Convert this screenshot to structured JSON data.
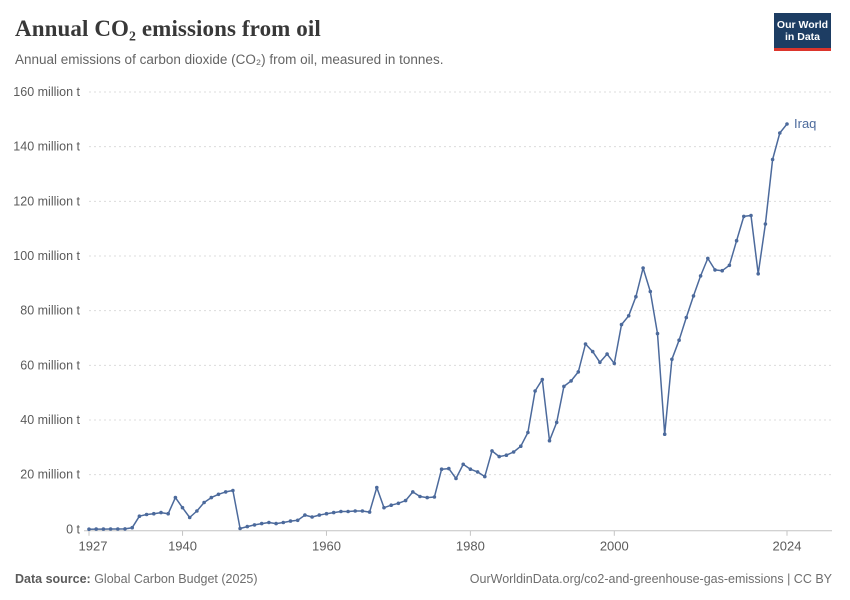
{
  "header": {
    "title": "Annual CO₂ emissions from oil",
    "subtitle": "Annual emissions of carbon dioxide (CO₂) from oil, measured in tonnes.",
    "logo": {
      "line1": "Our World",
      "line2": "in Data",
      "bg_color": "#1d3d63",
      "accent_color": "#dc352c"
    }
  },
  "footer": {
    "data_source_label": "Data source:",
    "data_source_value": " Global Carbon Budget (2025)",
    "right_text": "OurWorldinData.org/co2-and-greenhouse-gas-emissions | CC BY"
  },
  "chart_data": {
    "type": "line",
    "title": "Annual CO₂ emissions from oil",
    "subtitle": "Annual emissions of carbon dioxide (CO₂) from oil, measured in tonnes.",
    "xlabel": "",
    "ylabel": "",
    "unit": "tonnes of CO₂",
    "xlim": [
      1927,
      2024
    ],
    "ylim": [
      0,
      160000000
    ],
    "grid": "horizontal dashed",
    "legend_position": "end-of-line label",
    "x_tick_labels": [
      "1927",
      "1940",
      "1960",
      "1980",
      "2000",
      "2024"
    ],
    "x_tick_years": [
      1927,
      1940,
      1960,
      1980,
      2000,
      2024
    ],
    "y_tick_labels": [
      "0 t",
      "20 million t",
      "40 million t",
      "60 million t",
      "80 million t",
      "100 million t",
      "120 million t",
      "140 million t",
      "160 million t"
    ],
    "y_tick_values_mt": [
      0,
      20,
      40,
      60,
      80,
      100,
      120,
      140,
      160
    ],
    "series": [
      {
        "name": "Iraq",
        "color": "#4c6a9c",
        "marker": "dot",
        "x": [
          1927,
          1928,
          1929,
          1930,
          1931,
          1932,
          1933,
          1934,
          1935,
          1936,
          1937,
          1938,
          1939,
          1940,
          1941,
          1942,
          1943,
          1944,
          1945,
          1946,
          1947,
          1948,
          1949,
          1950,
          1951,
          1952,
          1953,
          1954,
          1955,
          1956,
          1957,
          1958,
          1959,
          1960,
          1961,
          1962,
          1963,
          1964,
          1965,
          1966,
          1967,
          1968,
          1969,
          1970,
          1971,
          1972,
          1973,
          1974,
          1975,
          1976,
          1977,
          1978,
          1979,
          1980,
          1981,
          1982,
          1983,
          1984,
          1985,
          1986,
          1987,
          1988,
          1989,
          1990,
          1991,
          1992,
          1993,
          1994,
          1995,
          1996,
          1997,
          1998,
          1999,
          2000,
          2001,
          2002,
          2003,
          2004,
          2005,
          2006,
          2007,
          2008,
          2009,
          2010,
          2011,
          2012,
          2013,
          2014,
          2015,
          2016,
          2017,
          2018,
          2019,
          2020,
          2021,
          2022,
          2023,
          2024
        ],
        "values_million_t": [
          0.05,
          0.06,
          0.08,
          0.1,
          0.12,
          0.15,
          0.6,
          4.8,
          5.4,
          5.7,
          6.1,
          5.7,
          11.6,
          7.9,
          4.3,
          6.7,
          9.8,
          11.6,
          12.8,
          13.7,
          14.2,
          0.3,
          1.0,
          1.6,
          2.1,
          2.5,
          2.1,
          2.5,
          3.0,
          3.3,
          5.2,
          4.5,
          5.2,
          5.7,
          6.1,
          6.5,
          6.5,
          6.7,
          6.7,
          6.3,
          15.3,
          7.9,
          8.8,
          9.5,
          10.5,
          13.7,
          12.0,
          11.6,
          11.8,
          22.0,
          22.2,
          18.6,
          23.8,
          22.0,
          21.0,
          19.3,
          28.7,
          26.6,
          27.1,
          28.3,
          30.4,
          35.4,
          50.6,
          54.8,
          32.4,
          39.1,
          52.3,
          54.3,
          57.6,
          67.8,
          65.0,
          61.1,
          64.1,
          60.7,
          74.9,
          78.1,
          85.1,
          95.6,
          87.0,
          71.6,
          34.8,
          62.2,
          69.2,
          77.5,
          85.4,
          92.7,
          99.1,
          94.9,
          94.6,
          96.6,
          105.6,
          114.5,
          114.8,
          93.5,
          111.7,
          135.3,
          145.0,
          148.3
        ]
      }
    ],
    "end_label": "Iraq",
    "styles": {
      "line_color": "#4c6a9c",
      "gridline_color": "#dcdcdc",
      "axis_line_color": "#c4c4c4",
      "tick_text_color": "#5b5b5b"
    }
  }
}
